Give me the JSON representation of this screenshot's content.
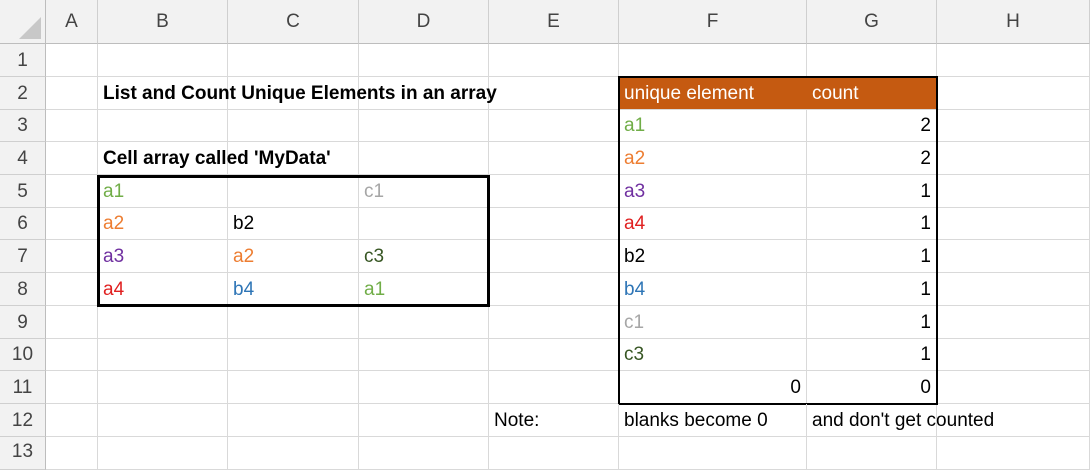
{
  "columns": [
    "A",
    "B",
    "C",
    "D",
    "E",
    "F",
    "G",
    "H"
  ],
  "rows": [
    "1",
    "2",
    "3",
    "4",
    "5",
    "6",
    "7",
    "8",
    "9",
    "10",
    "11",
    "12",
    "13"
  ],
  "title": "List and Count Unique Elements in an array",
  "subtitle": "Cell array called 'MyData'",
  "mydata": {
    "r5": {
      "b": "a1",
      "c": "",
      "d": "c1"
    },
    "r6": {
      "b": "a2",
      "c": "b2",
      "d": ""
    },
    "r7": {
      "b": "a3",
      "c": "a2",
      "d": "c3"
    },
    "r8": {
      "b": "a4",
      "c": "b4",
      "d": "a1"
    }
  },
  "table": {
    "header_element": "unique element",
    "header_count": "count",
    "rows": [
      {
        "element": "a1",
        "count": "2"
      },
      {
        "element": "a2",
        "count": "2"
      },
      {
        "element": "a3",
        "count": "1"
      },
      {
        "element": "a4",
        "count": "1"
      },
      {
        "element": "b2",
        "count": "1"
      },
      {
        "element": "b4",
        "count": "1"
      },
      {
        "element": "c1",
        "count": "1"
      },
      {
        "element": "c3",
        "count": "1"
      },
      {
        "element": "0",
        "count": "0"
      }
    ]
  },
  "note": {
    "label": "Note:",
    "text1": "blanks become 0",
    "text2": "and don't get counted"
  },
  "colors": {
    "a1": "#70ad47",
    "a2": "#ed7d31",
    "a3": "#7030a0",
    "a4": "#e02020",
    "b2": "#000000",
    "b4": "#2e75b6",
    "c1": "#a6a6a6",
    "c3": "#375623",
    "header_fill": "#c55a11"
  }
}
